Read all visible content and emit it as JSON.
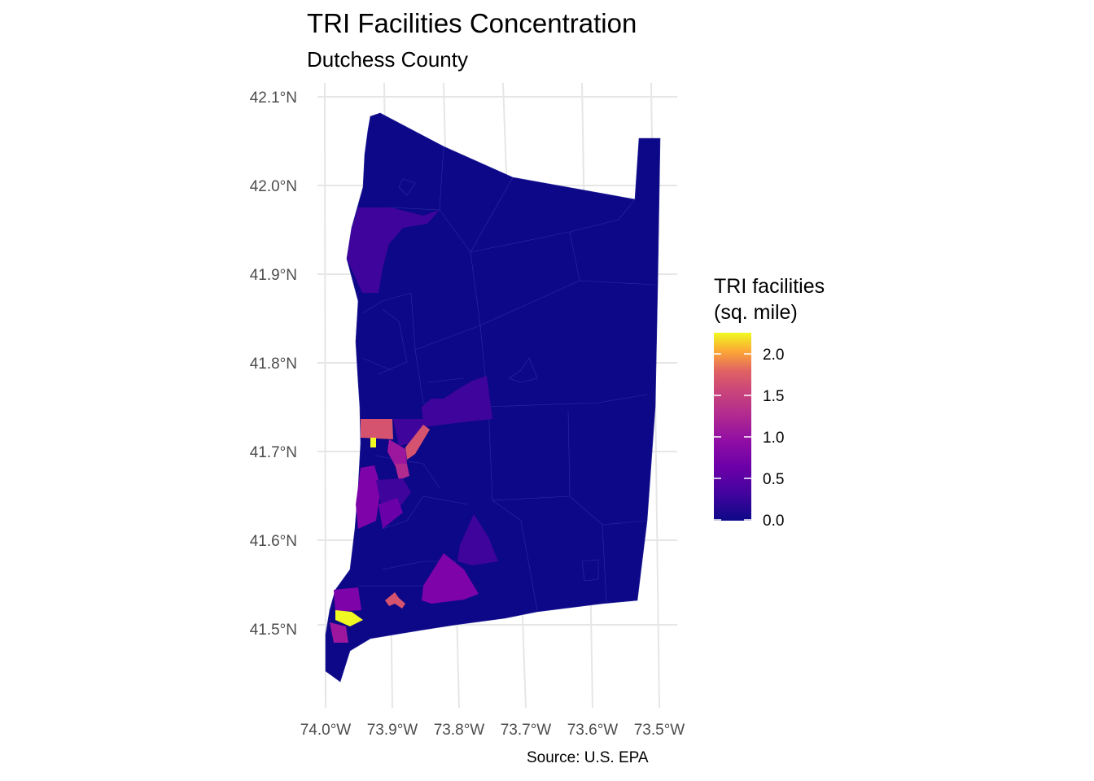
{
  "header": {
    "title": "TRI Facilities Concentration",
    "subtitle": "Dutchess County"
  },
  "caption": "Source: U.S. EPA",
  "legend": {
    "title_line1": "TRI facilities",
    "title_line2": "(sq. mile)",
    "ticks": [
      "2.0",
      "1.5",
      "1.0",
      "0.5",
      "0.0"
    ],
    "palette": "plasma",
    "range": [
      0,
      2.25
    ]
  },
  "axes": {
    "lat_labels": [
      "42.1°N",
      "42.0°N",
      "41.9°N",
      "41.8°N",
      "41.7°N",
      "41.6°N",
      "41.5°N"
    ],
    "lon_labels": [
      "74.0°W",
      "73.9°W",
      "73.8°W",
      "73.7°W",
      "73.6°W",
      "73.5°W"
    ]
  },
  "colors": {
    "lowest": "#0d0887",
    "low": "#3e049c",
    "mid": "#7e03a8",
    "midhigh": "#b12a90",
    "high": "#d5536f",
    "highest": "#f0f921",
    "grid": "#e6e6e6"
  }
}
